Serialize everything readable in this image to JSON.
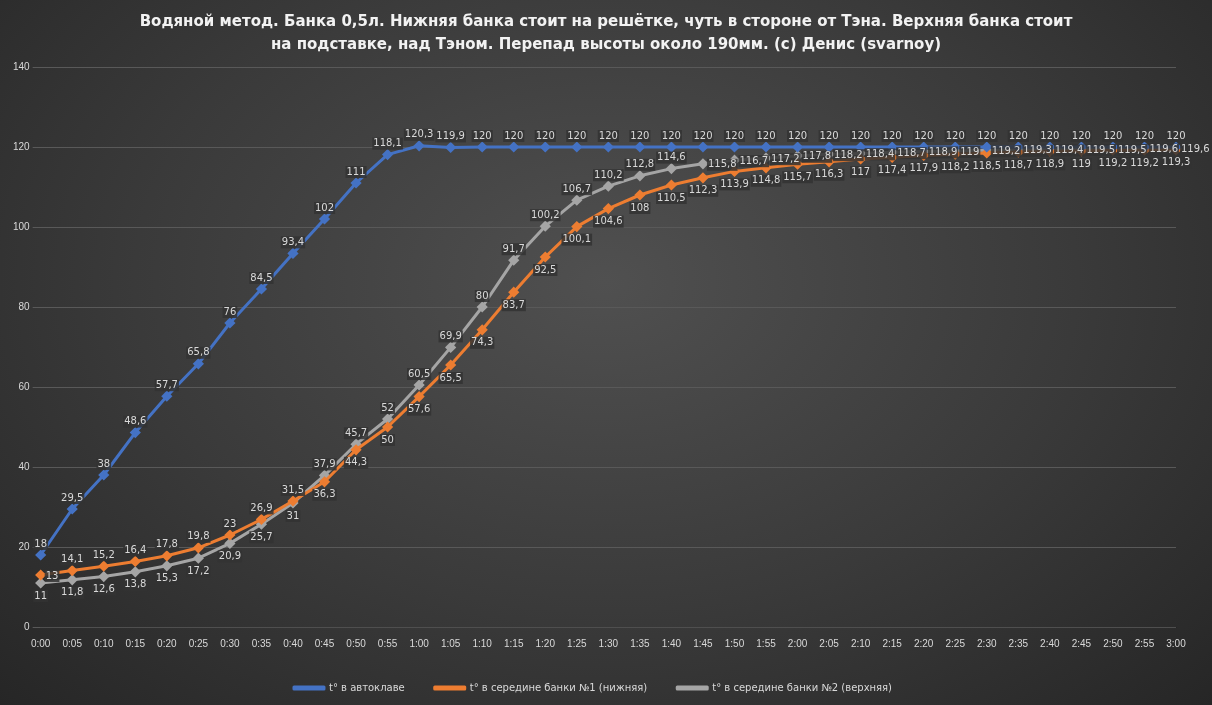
{
  "chart_data": {
    "type": "line",
    "title": "Водяной метод. Банка 0,5л. Нижняя банка стоит на решётке, чуть в стороне от Тэна. Верхняя банка стоит на подставке, над Тэном. Перепад высоты около 190мм. (с) Денис (svarnoy)",
    "categories": [
      "0:00",
      "0:05",
      "0:10",
      "0:15",
      "0:20",
      "0:25",
      "0:30",
      "0:35",
      "0:40",
      "0:45",
      "0:50",
      "0:55",
      "1:00",
      "1:05",
      "1:10",
      "1:15",
      "1:20",
      "1:25",
      "1:30",
      "1:35",
      "1:40",
      "1:45",
      "1:50",
      "1:55",
      "2:00",
      "2:05",
      "2:10",
      "2:15",
      "2:20",
      "2:25",
      "2:30",
      "2:35",
      "2:40",
      "2:45",
      "2:50",
      "2:55",
      "3:00"
    ],
    "series": [
      {
        "name": "t° в автоклаве",
        "color": "#4472c4",
        "values": [
          18,
          29.5,
          38,
          48.6,
          57.7,
          65.8,
          76,
          84.5,
          93.4,
          102,
          111,
          118.1,
          120.3,
          119.9,
          120,
          120,
          120,
          120,
          120,
          120,
          120,
          120,
          120,
          120,
          120,
          120,
          120,
          120,
          120,
          120,
          120,
          120,
          120,
          120,
          120,
          120,
          120
        ],
        "value_labels": [
          "18",
          "29,5",
          "38",
          "48,6",
          "57,7",
          "65,8",
          "76",
          "84,5",
          "93,4",
          "102",
          "111",
          "118,1",
          "120,3",
          "119,9",
          "120",
          "120",
          "120",
          "120",
          "120",
          "120",
          "120",
          "120",
          "120",
          "120",
          "120",
          "120",
          "120",
          "120",
          "120",
          "120",
          "120",
          "120",
          "120",
          "120",
          "120",
          "120",
          "120"
        ]
      },
      {
        "name": "t° в середине банки №1 (нижняя)",
        "color": "#ed7d31",
        "values": [
          13,
          14.1,
          15.2,
          16.4,
          17.8,
          19.8,
          23,
          26.9,
          31.5,
          36.3,
          44.3,
          50,
          57.6,
          65.5,
          74.3,
          83.7,
          92.5,
          100.1,
          104.6,
          108,
          110.5,
          112.3,
          113.9,
          114.8,
          115.7,
          116.3,
          117,
          117.4,
          117.9,
          118.2,
          118.5,
          118.7,
          118.9,
          119,
          119.2,
          119.2,
          119.3
        ],
        "value_labels": [
          "13",
          "14,1",
          "15,2",
          "16,4",
          "17,8",
          "19,8",
          "23",
          "26,9",
          "31,5",
          "36,3",
          "44,3",
          "50",
          "57,6",
          "65,5",
          "74,3",
          "83,7",
          "92,5",
          "100,1",
          "104,6",
          "108",
          "110,5",
          "112,3",
          "113,9",
          "114,8",
          "115,7",
          "116,3",
          "117",
          "117,4",
          "117,9",
          "118,2",
          "118,5",
          "118,7",
          "118,9",
          "119",
          "119,2",
          "119,2",
          "119,3"
        ]
      },
      {
        "name": "t° в середине банки №2 (верхняя)",
        "color": "#a5a5a5",
        "values": [
          11,
          11.8,
          12.6,
          13.8,
          15.3,
          17.2,
          20.9,
          25.7,
          31,
          37.9,
          45.7,
          52,
          60.5,
          69.9,
          80,
          91.7,
          100.2,
          106.7,
          110.2,
          112.8,
          114.6,
          115.8,
          116.7,
          117.2,
          117.8,
          118.2,
          118.4,
          118.7,
          118.9,
          119,
          119.2,
          119.3,
          119.4,
          119.5,
          119.5,
          119.6,
          119.6
        ],
        "value_labels": [
          "11",
          "11,8",
          "12,6",
          "13,8",
          "15,3",
          "17,2",
          "20,9",
          "25,7",
          "31",
          "37,9",
          "45,7",
          "52",
          "60,5",
          "69,9",
          "80",
          "91,7",
          "100,2",
          "106,7",
          "110,2",
          "112,8",
          "114,6",
          "115,8",
          "116,7",
          "117,2",
          "117,8",
          "118,2",
          "118,4",
          "118,7",
          "118,9",
          "119",
          "119,2",
          "119,3",
          "119,4",
          "119,5",
          "119,5",
          "119,6",
          "119,6"
        ]
      }
    ],
    "ylim": [
      0,
      140
    ],
    "yticks": [
      0,
      20,
      40,
      60,
      80,
      100,
      120,
      140
    ],
    "grid": "y",
    "legend": "bottom",
    "marker": "diamond",
    "line_style": "solid"
  }
}
